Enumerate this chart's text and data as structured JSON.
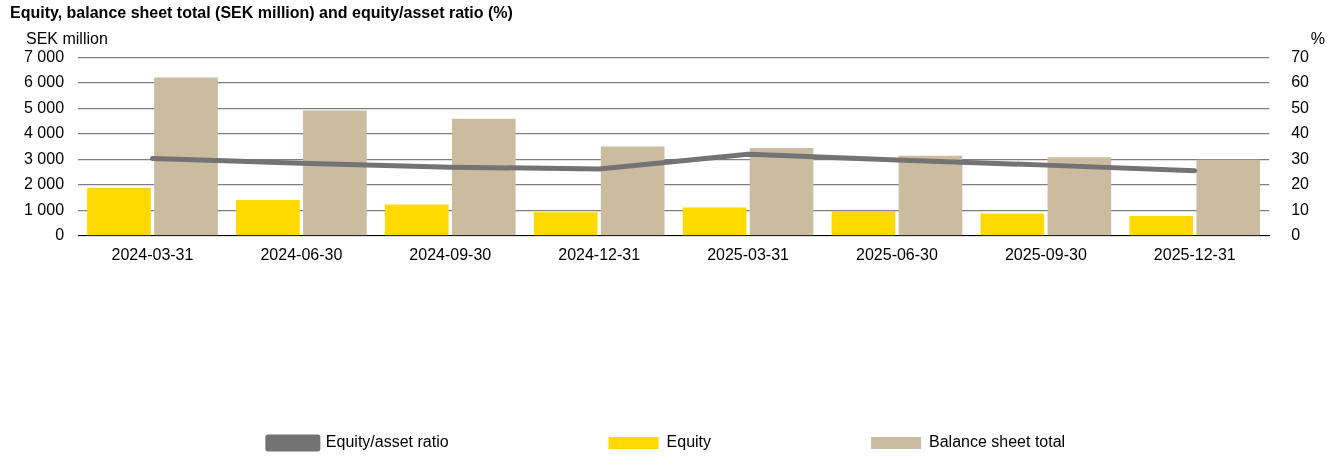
{
  "chart_data": {
    "type": "bar",
    "title": "Equity, balance sheet total (SEK million) and equity/asset ratio (%)",
    "ylabel": "SEK million",
    "y2label": "%",
    "categories": [
      "2024-03-31",
      "2024-06-30",
      "2024-09-30",
      "2024-12-31",
      "2025-03-31",
      "2025-06-30",
      "2025-09-30",
      "2025-12-31"
    ],
    "series": [
      {
        "name": "Equity",
        "color": "#ffd900",
        "values": [
          1880,
          1400,
          1230,
          920,
          1110,
          960,
          870,
          780
        ]
      },
      {
        "name": "Balance sheet total",
        "color": "#cbbba0",
        "values": [
          6200,
          4910,
          4590,
          3500,
          3440,
          3140,
          3080,
          2980
        ]
      },
      {
        "name": "Equity/asset ratio",
        "type": "line",
        "axis": "y2",
        "color": "#737373",
        "values": [
          30.3,
          28.4,
          26.9,
          26.2,
          32.0,
          29.7,
          27.7,
          25.5
        ]
      }
    ],
    "ylim": [
      0,
      7000
    ],
    "yticks": [
      {
        "value": 0,
        "label": "0"
      },
      {
        "value": 1000,
        "label": "1 000"
      },
      {
        "value": 2000,
        "label": "2 000"
      },
      {
        "value": 3000,
        "label": "3 000"
      },
      {
        "value": 4000,
        "label": "4 000"
      },
      {
        "value": 5000,
        "label": "5 000"
      },
      {
        "value": 6000,
        "label": "6 000"
      },
      {
        "value": 7000,
        "label": "7 000"
      }
    ],
    "y2lim": [
      0,
      70
    ],
    "y2ticks": [
      0,
      10,
      20,
      30,
      40,
      50,
      60,
      70
    ],
    "grid": "y",
    "legend": "bottom",
    "marker": "none"
  }
}
